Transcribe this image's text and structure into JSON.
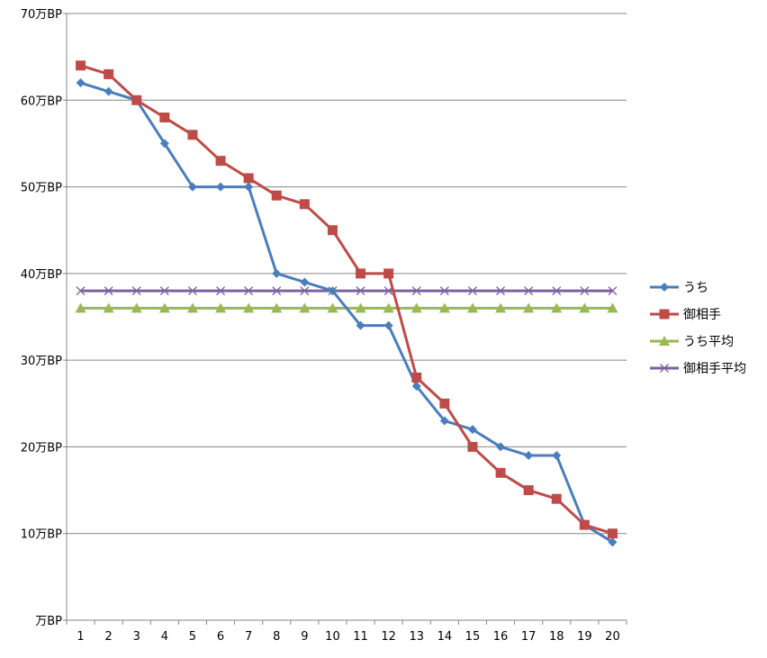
{
  "chart_data": {
    "type": "line",
    "title": "",
    "xlabel": "",
    "ylabel": "",
    "categories": [
      "1",
      "2",
      "3",
      "4",
      "5",
      "6",
      "7",
      "8",
      "9",
      "10",
      "11",
      "12",
      "13",
      "14",
      "15",
      "16",
      "17",
      "18",
      "19",
      "20"
    ],
    "y_tick_labels": [
      "万BP",
      "10万BP",
      "20万BP",
      "30万BP",
      "40万BP",
      "50万BP",
      "60万BP",
      "70万BP"
    ],
    "ylim": [
      0,
      70
    ],
    "y_unit": "万BP",
    "grid": "horizontal",
    "legend_position": "right",
    "series": [
      {
        "name": "うち",
        "color": "#4a7ebb",
        "marker": "diamond",
        "values": [
          62,
          61,
          60,
          55,
          50,
          50,
          50,
          40,
          39,
          38,
          34,
          34,
          27,
          23,
          22,
          20,
          19,
          19,
          11,
          9
        ]
      },
      {
        "name": "御相手",
        "color": "#be4b48",
        "marker": "square",
        "values": [
          64,
          63,
          60,
          58,
          56,
          53,
          51,
          49,
          48,
          45,
          40,
          40,
          28,
          25,
          20,
          17,
          15,
          14,
          11,
          10
        ]
      },
      {
        "name": "うち平均",
        "color": "#98b954",
        "marker": "triangle",
        "values": [
          36,
          36,
          36,
          36,
          36,
          36,
          36,
          36,
          36,
          36,
          36,
          36,
          36,
          36,
          36,
          36,
          36,
          36,
          36,
          36
        ]
      },
      {
        "name": "御相手平均",
        "color": "#7d60a0",
        "marker": "x",
        "values": [
          38,
          38,
          38,
          38,
          38,
          38,
          38,
          38,
          38,
          38,
          38,
          38,
          38,
          38,
          38,
          38,
          38,
          38,
          38,
          38
        ]
      }
    ]
  }
}
